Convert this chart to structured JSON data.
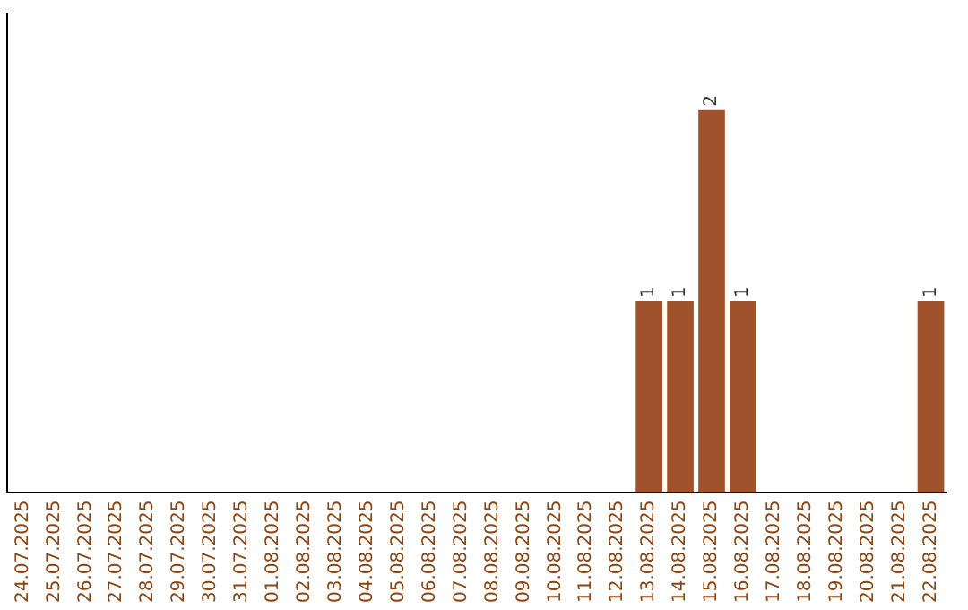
{
  "chart_data": {
    "type": "bar",
    "categories": [
      "24.07.2025",
      "25.07.2025",
      "26.07.2025",
      "27.07.2025",
      "28.07.2025",
      "29.07.2025",
      "30.07.2025",
      "31.07.2025",
      "01.08.2025",
      "02.08.2025",
      "03.08.2025",
      "04.08.2025",
      "05.08.2025",
      "06.08.2025",
      "07.08.2025",
      "08.08.2025",
      "09.08.2025",
      "10.08.2025",
      "11.08.2025",
      "12.08.2025",
      "13.08.2025",
      "14.08.2025",
      "15.08.2025",
      "16.08.2025",
      "17.08.2025",
      "18.08.2025",
      "19.08.2025",
      "20.08.2025",
      "21.08.2025",
      "22.08.2025"
    ],
    "values": [
      null,
      null,
      null,
      null,
      null,
      null,
      null,
      null,
      null,
      null,
      null,
      null,
      null,
      null,
      null,
      null,
      null,
      null,
      null,
      null,
      1,
      1,
      2,
      1,
      null,
      null,
      null,
      null,
      null,
      1
    ],
    "data_labels": true,
    "color": "#a0522d",
    "grid": false,
    "legend": false,
    "tick_labels": "x"
  }
}
